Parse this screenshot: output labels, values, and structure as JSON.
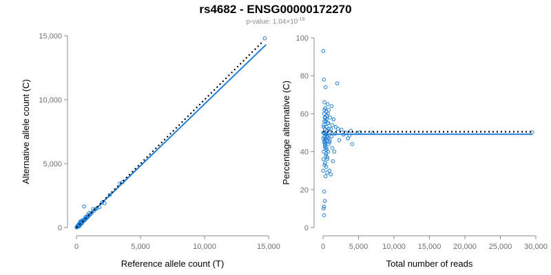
{
  "header": {
    "title": "rs4682 - ENSG00000172270",
    "pvalue_prefix": "p-value: 1.04×10",
    "pvalue_exponent": "-19"
  },
  "colors": {
    "points": "#1f7fd8",
    "fit_line": "#1f7fd8",
    "reference_line": "#000000"
  },
  "chart_data": [
    {
      "type": "scatter",
      "xlabel": "Reference allele count (T)",
      "ylabel": "Alternative allele count (C)",
      "xlim": [
        0,
        15000
      ],
      "ylim": [
        0,
        15000
      ],
      "xticks": [
        0,
        5000,
        10000,
        15000
      ],
      "yticks": [
        0,
        5000,
        10000,
        15000
      ],
      "xtick_labels": [
        "0",
        "5,000",
        "10,000",
        "15,000"
      ],
      "ytick_labels": [
        "0",
        "5,000",
        "10,000",
        "15,000"
      ],
      "reference_line": {
        "style": "dotted",
        "x": [
          0,
          14500
        ],
        "y": [
          0,
          14500
        ]
      },
      "fit_line": {
        "style": "solid",
        "x": [
          0,
          14800
        ],
        "y": [
          0,
          14300
        ]
      },
      "points": {
        "x": [
          14700,
          3400,
          3600,
          2600,
          2000,
          1800,
          1500,
          1350,
          1200,
          1100,
          1000,
          900,
          850,
          800,
          750,
          700,
          650,
          600,
          550,
          500,
          500,
          450,
          400,
          400,
          350,
          300,
          300,
          250,
          250,
          200,
          200,
          150,
          150,
          100,
          100,
          60,
          50,
          30,
          20,
          10,
          600,
          700,
          300,
          400,
          200,
          350,
          450,
          120,
          80,
          250,
          1000,
          900,
          1300,
          2200,
          1600,
          750,
          550,
          180,
          220,
          320
        ],
        "y": [
          14800,
          3450,
          3550,
          2550,
          1950,
          1600,
          1450,
          1300,
          1150,
          1050,
          950,
          850,
          800,
          750,
          700,
          650,
          600,
          550,
          500,
          450,
          600,
          400,
          350,
          500,
          300,
          250,
          400,
          200,
          350,
          150,
          300,
          100,
          200,
          80,
          150,
          50,
          80,
          20,
          40,
          10,
          1650,
          800,
          250,
          300,
          180,
          450,
          380,
          60,
          120,
          150,
          1150,
          1000,
          1450,
          1900,
          1500,
          850,
          600,
          250,
          100,
          500
        ]
      }
    },
    {
      "type": "scatter",
      "xlabel": "Total number of reads",
      "ylabel": "Percentage alternative (C)",
      "xlim": [
        0,
        30000
      ],
      "ylim": [
        0,
        100
      ],
      "xticks": [
        0,
        5000,
        10000,
        15000,
        20000,
        25000,
        30000
      ],
      "yticks": [
        0,
        20,
        40,
        60,
        80,
        100
      ],
      "xtick_labels": [
        "0",
        "5,000",
        "10,000",
        "15,000",
        "20,000",
        "25,000",
        "30,000"
      ],
      "ytick_labels": [
        "0",
        "20",
        "40",
        "60",
        "80",
        "100"
      ],
      "reference_line": {
        "style": "dotted",
        "y": 50.5
      },
      "fit_line": {
        "style": "solid",
        "y": 49.2
      },
      "points": {
        "x": [
          29500,
          7000,
          5200,
          4800,
          4100,
          3900,
          3700,
          3500,
          3200,
          2900,
          2600,
          2300,
          2000,
          1800,
          1600,
          1500,
          1400,
          1300,
          1200,
          1100,
          1000,
          950,
          900,
          850,
          800,
          780,
          750,
          700,
          650,
          620,
          600,
          580,
          550,
          520,
          500,
          480,
          450,
          420,
          400,
          380,
          350,
          320,
          300,
          280,
          260,
          250,
          240,
          220,
          200,
          180,
          160,
          150,
          140,
          120,
          100,
          90,
          80,
          60,
          50,
          40,
          30,
          20,
          500,
          400,
          300,
          200,
          900,
          1100,
          1300,
          600,
          700,
          800,
          350,
          250,
          450,
          550,
          650,
          150,
          300,
          450,
          600,
          200,
          350,
          150,
          250,
          400,
          100,
          300,
          500,
          700,
          2100,
          1700,
          1200,
          300,
          180,
          600
        ],
        "y": [
          50.2,
          50.0,
          50.2,
          49.8,
          44.0,
          51.0,
          48.5,
          47.0,
          50.0,
          49.0,
          51.5,
          46.0,
          76.0,
          53.0,
          40.0,
          57.0,
          35.0,
          54.0,
          48.0,
          52.0,
          58.0,
          46.0,
          30.0,
          50.0,
          62.0,
          44.0,
          55.0,
          40.0,
          65.0,
          48.0,
          51.0,
          36.0,
          59.0,
          46.0,
          53.0,
          42.0,
          61.0,
          49.0,
          38.0,
          56.0,
          27.0,
          47.0,
          63.0,
          44.0,
          52.0,
          14.0,
          58.0,
          33.0,
          48.0,
          19.0,
          60.0,
          11.0,
          45.0,
          78.0,
          40.0,
          54.0,
          10.0,
          36.0,
          47.0,
          93.0,
          30.0,
          50.0,
          41.0,
          56.0,
          34.0,
          62.0,
          45.0,
          28.0,
          42.0,
          37.0,
          60.0,
          52.0,
          58.0,
          43.0,
          32.0,
          48.0,
          55.0,
          6.5,
          45.0,
          39.0,
          51.0,
          66.0,
          74.0,
          50.0,
          46.0,
          49.0,
          53.0,
          44.0,
          57.0,
          47.0,
          52.0,
          49.5,
          64.0,
          42.0,
          56.0,
          29.0
        ]
      }
    }
  ]
}
